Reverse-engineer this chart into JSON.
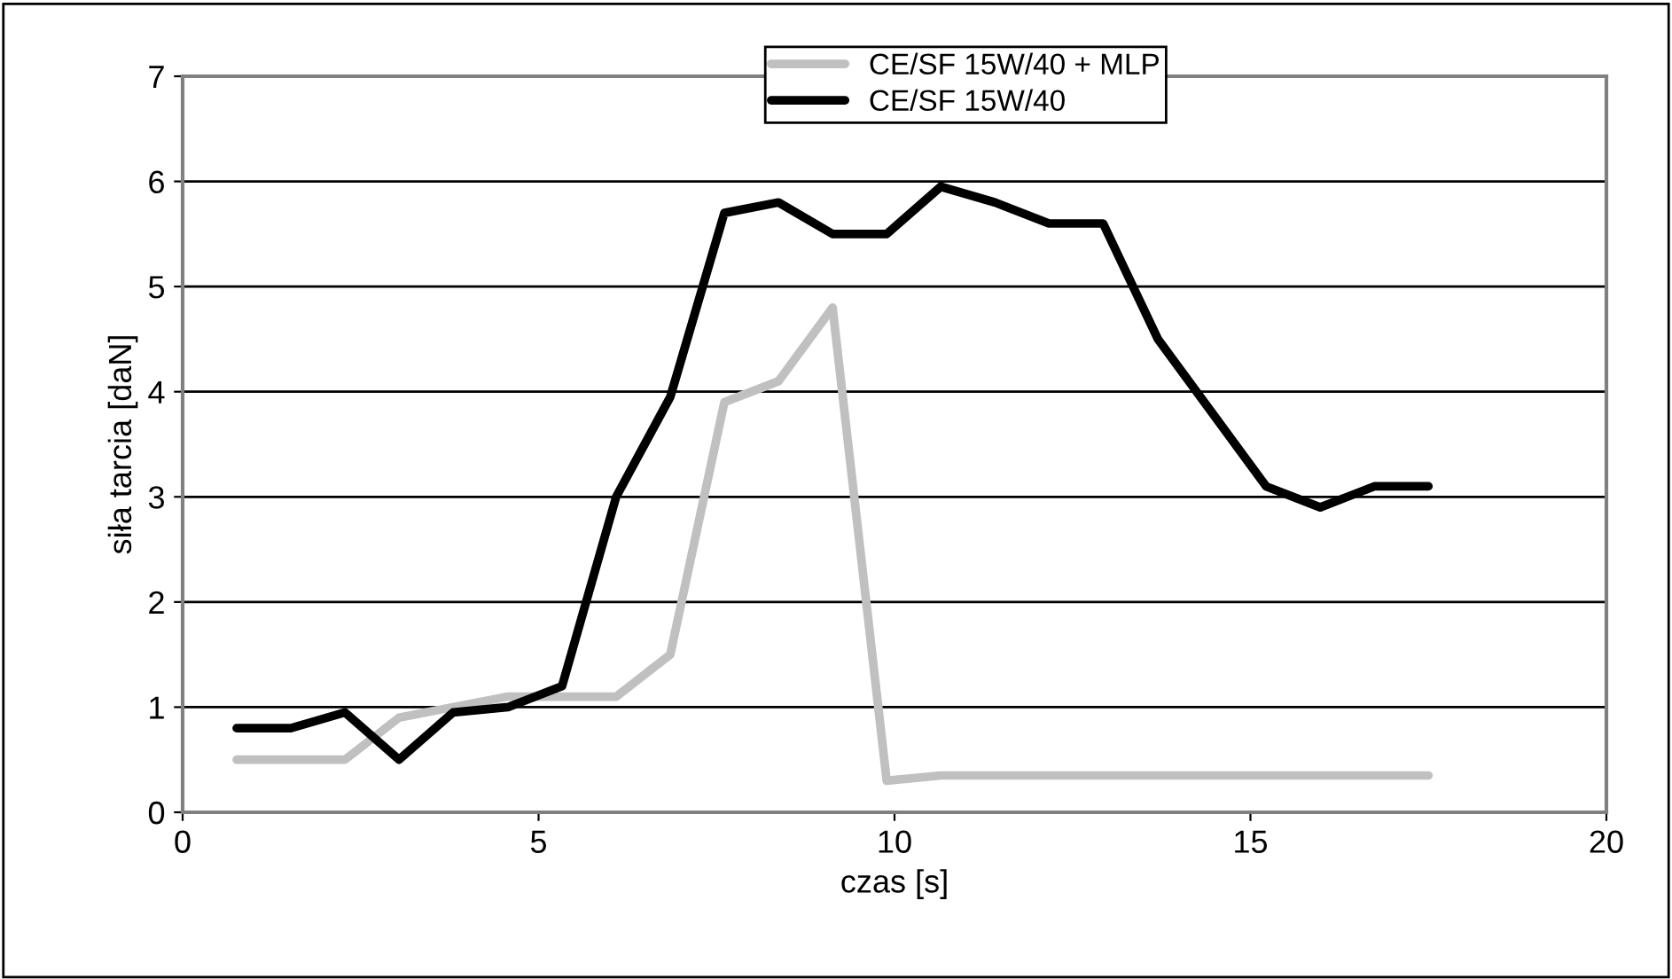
{
  "chart_data": {
    "type": "line",
    "xlabel": "czas [s]",
    "ylabel": "siła tarcia [daN]",
    "x": [
      0.76,
      1.52,
      2.28,
      3.04,
      3.8,
      4.57,
      5.33,
      6.09,
      6.85,
      7.61,
      8.37,
      9.13,
      9.89,
      10.65,
      11.41,
      12.17,
      12.93,
      13.7,
      14.46,
      15.22,
      15.98,
      16.74,
      17.5
    ],
    "series": [
      {
        "name": "CE/SF 15W/40 + MLP",
        "color": "#c0c0c0",
        "values": [
          0.5,
          0.5,
          0.5,
          0.9,
          1.0,
          1.1,
          1.1,
          1.1,
          1.5,
          3.9,
          4.1,
          4.8,
          0.3,
          0.35,
          0.35,
          0.35,
          0.35,
          0.35,
          0.35,
          0.35,
          0.35,
          0.35,
          0.35
        ]
      },
      {
        "name": "CE/SF 15W/40",
        "color": "#000000",
        "values": [
          0.8,
          0.8,
          0.95,
          0.5,
          0.95,
          1.0,
          1.2,
          3.0,
          3.95,
          5.7,
          5.8,
          5.5,
          5.5,
          5.95,
          5.8,
          5.6,
          5.6,
          4.5,
          3.8,
          3.1,
          2.9,
          3.1,
          3.1
        ]
      }
    ],
    "xlim": [
      0,
      20
    ],
    "xticks": [
      0,
      5,
      10,
      15,
      20
    ],
    "ylim": [
      0,
      7
    ],
    "yticks": [
      0,
      1,
      2,
      3,
      4,
      5,
      6,
      7
    ],
    "grid": "y",
    "legend": "top",
    "marker": "none",
    "line_style": "solid"
  }
}
